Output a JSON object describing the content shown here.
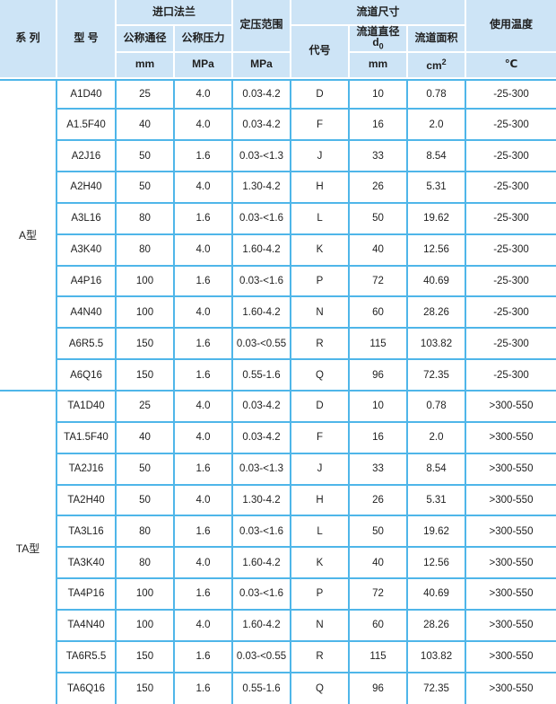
{
  "colors": {
    "header_bg": "#cde4f6",
    "header_grid": "#ffffff",
    "data_grid": "#4fb6e9",
    "text": "#1f1f1f"
  },
  "table": {
    "header": {
      "series": "系 列",
      "model": "型 号",
      "inlet_flange": "进口法兰",
      "nominal_diameter": "公称通径",
      "nominal_pressure": "公称压力",
      "set_pressure_range": "定压范围",
      "flow_channel_size": "流道尺寸",
      "code": "代号",
      "flow_diameter_line1": "流道直径",
      "flow_diameter_symbol": "d",
      "flow_diameter_sub": "0",
      "flow_area": "流道面积",
      "unit_dn_mm": "mm",
      "unit_pn_mpa": "MPa",
      "unit_range_mpa": "MPa",
      "unit_d0_mm": "mm",
      "unit_area_cm": "cm",
      "unit_area_sup": "2",
      "operating_temperature": "使用温度",
      "unit_celsius": "℃"
    },
    "cell_keys": [
      "model",
      "dn",
      "pn",
      "range",
      "code",
      "d0",
      "area",
      "temp"
    ],
    "sections": [
      {
        "series": "A型",
        "rows": [
          {
            "model": "A1D40",
            "dn": "25",
            "pn": "4.0",
            "range": "0.03-4.2",
            "code": "D",
            "d0": "10",
            "area": "0.78",
            "temp": "-25-300"
          },
          {
            "model": "A1.5F40",
            "dn": "40",
            "pn": "4.0",
            "range": "0.03-4.2",
            "code": "F",
            "d0": "16",
            "area": "2.0",
            "temp": "-25-300"
          },
          {
            "model": "A2J16",
            "dn": "50",
            "pn": "1.6",
            "range": "0.03-<1.3",
            "code": "J",
            "d0": "33",
            "area": "8.54",
            "temp": "-25-300"
          },
          {
            "model": "A2H40",
            "dn": "50",
            "pn": "4.0",
            "range": "1.30-4.2",
            "code": "H",
            "d0": "26",
            "area": "5.31",
            "temp": "-25-300"
          },
          {
            "model": "A3L16",
            "dn": "80",
            "pn": "1.6",
            "range": "0.03-<1.6",
            "code": "L",
            "d0": "50",
            "area": "19.62",
            "temp": "-25-300"
          },
          {
            "model": "A3K40",
            "dn": "80",
            "pn": "4.0",
            "range": "1.60-4.2",
            "code": "K",
            "d0": "40",
            "area": "12.56",
            "temp": "-25-300"
          },
          {
            "model": "A4P16",
            "dn": "100",
            "pn": "1.6",
            "range": "0.03-<1.6",
            "code": "P",
            "d0": "72",
            "area": "40.69",
            "temp": "-25-300"
          },
          {
            "model": "A4N40",
            "dn": "100",
            "pn": "4.0",
            "range": "1.60-4.2",
            "code": "N",
            "d0": "60",
            "area": "28.26",
            "temp": "-25-300"
          },
          {
            "model": "A6R5.5",
            "dn": "150",
            "pn": "1.6",
            "range": "0.03-<0.55",
            "code": "R",
            "d0": "115",
            "area": "103.82",
            "temp": "-25-300"
          },
          {
            "model": "A6Q16",
            "dn": "150",
            "pn": "1.6",
            "range": "0.55-1.6",
            "code": "Q",
            "d0": "96",
            "area": "72.35",
            "temp": "-25-300"
          }
        ]
      },
      {
        "series": "TA型",
        "rows": [
          {
            "model": "TA1D40",
            "dn": "25",
            "pn": "4.0",
            "range": "0.03-4.2",
            "code": "D",
            "d0": "10",
            "area": "0.78",
            "temp": ">300-550"
          },
          {
            "model": "TA1.5F40",
            "dn": "40",
            "pn": "4.0",
            "range": "0.03-4.2",
            "code": "F",
            "d0": "16",
            "area": "2.0",
            "temp": ">300-550"
          },
          {
            "model": "TA2J16",
            "dn": "50",
            "pn": "1.6",
            "range": "0.03-<1.3",
            "code": "J",
            "d0": "33",
            "area": "8.54",
            "temp": ">300-550"
          },
          {
            "model": "TA2H40",
            "dn": "50",
            "pn": "4.0",
            "range": "1.30-4.2",
            "code": "H",
            "d0": "26",
            "area": "5.31",
            "temp": ">300-550"
          },
          {
            "model": "TA3L16",
            "dn": "80",
            "pn": "1.6",
            "range": "0.03-<1.6",
            "code": "L",
            "d0": "50",
            "area": "19.62",
            "temp": ">300-550"
          },
          {
            "model": "TA3K40",
            "dn": "80",
            "pn": "4.0",
            "range": "1.60-4.2",
            "code": "K",
            "d0": "40",
            "area": "12.56",
            "temp": ">300-550"
          },
          {
            "model": "TA4P16",
            "dn": "100",
            "pn": "1.6",
            "range": "0.03-<1.6",
            "code": "P",
            "d0": "72",
            "area": "40.69",
            "temp": ">300-550"
          },
          {
            "model": "TA4N40",
            "dn": "100",
            "pn": "4.0",
            "range": "1.60-4.2",
            "code": "N",
            "d0": "60",
            "area": "28.26",
            "temp": ">300-550"
          },
          {
            "model": "TA6R5.5",
            "dn": "150",
            "pn": "1.6",
            "range": "0.03-<0.55",
            "code": "R",
            "d0": "115",
            "area": "103.82",
            "temp": ">300-550"
          },
          {
            "model": "TA6Q16",
            "dn": "150",
            "pn": "1.6",
            "range": "0.55-1.6",
            "code": "Q",
            "d0": "96",
            "area": "72.35",
            "temp": ">300-550"
          }
        ]
      }
    ]
  }
}
